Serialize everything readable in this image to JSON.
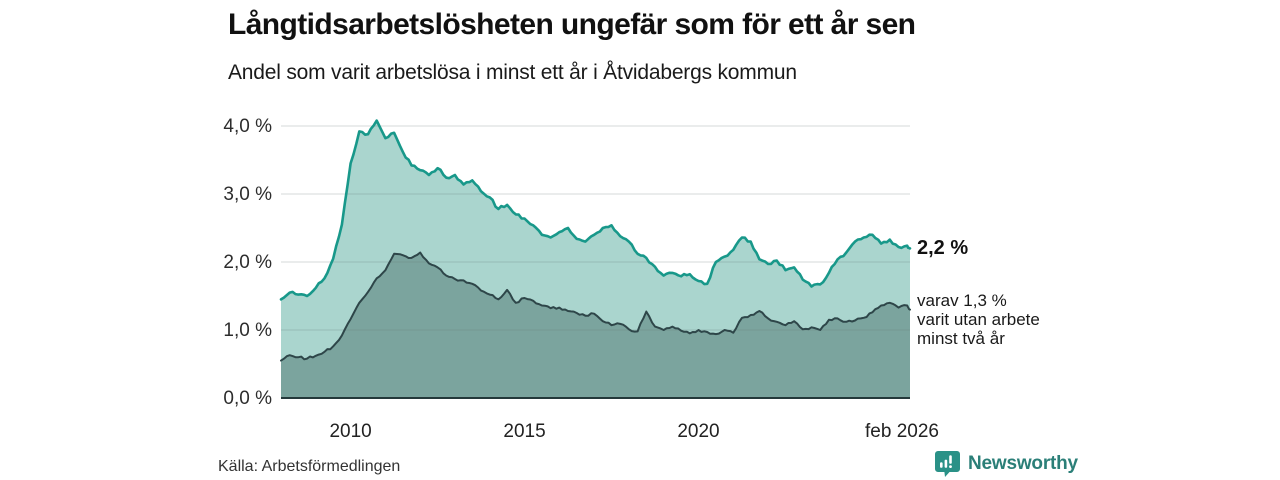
{
  "chart": {
    "title": "Långtidsarbetslösheten ungefär som för ett år sen",
    "subtitle": "Andel som varit arbetslösa i minst ett år i Åtvidabergs kommun",
    "source": "Källa: Arbetsförmedlingen",
    "end_label_total": "2,2 %",
    "annotation": {
      "line1": "varav 1,3 %",
      "line2": "varit utan arbete",
      "line3": "minst två år"
    }
  },
  "branding": {
    "logo_text": "Newsworthy",
    "logo_icon": "bar-chart-speech-bubble-icon"
  },
  "colors": {
    "long_term_line": "#18988a",
    "long_term_fill": "#aad5ce",
    "very_long_term_line": "#2e4649",
    "very_long_term_fill": "#7ba49e",
    "grid": "#dddddd",
    "axis": "#24393b",
    "logo_teal": "#2b7f78"
  },
  "chart_data": {
    "type": "area",
    "title": "Långtidsarbetslösheten ungefär som för ett år sen",
    "subtitle": "Andel som varit arbetslösa i minst ett år i Åtvidabergs kommun",
    "unit": "%",
    "grid": true,
    "legend_position": "end-of-line-labels",
    "ylim": [
      0,
      4.35
    ],
    "xlim": [
      2008.0,
      2026.08
    ],
    "y_ticks": [
      {
        "label": "0,0 %",
        "value": 0
      },
      {
        "label": "1,0 %",
        "value": 1
      },
      {
        "label": "2,0 %",
        "value": 2
      },
      {
        "label": "3,0 %",
        "value": 3
      },
      {
        "label": "4,0 %",
        "value": 4
      }
    ],
    "x_ticks": [
      {
        "label": "2010",
        "year": 2010
      },
      {
        "label": "2015",
        "year": 2015
      },
      {
        "label": "2020",
        "year": 2020
      },
      {
        "label": "feb 2026",
        "year": 2026.08
      }
    ],
    "x": [
      2008.0,
      2008.25,
      2008.5,
      2008.75,
      2009.0,
      2009.25,
      2009.5,
      2009.75,
      2010.0,
      2010.25,
      2010.5,
      2010.75,
      2011.0,
      2011.25,
      2011.5,
      2011.75,
      2012.0,
      2012.25,
      2012.5,
      2012.75,
      2013.0,
      2013.25,
      2013.5,
      2013.75,
      2014.0,
      2014.25,
      2014.5,
      2014.75,
      2015.0,
      2015.25,
      2015.5,
      2015.75,
      2016.0,
      2016.25,
      2016.5,
      2016.75,
      2017.0,
      2017.25,
      2017.5,
      2017.75,
      2018.0,
      2018.25,
      2018.5,
      2018.75,
      2019.0,
      2019.25,
      2019.5,
      2019.75,
      2020.0,
      2020.25,
      2020.5,
      2020.75,
      2021.0,
      2021.25,
      2021.5,
      2021.75,
      2022.0,
      2022.25,
      2022.5,
      2022.75,
      2023.0,
      2023.25,
      2023.5,
      2023.75,
      2024.0,
      2024.25,
      2024.5,
      2024.75,
      2025.0,
      2025.25,
      2025.5,
      2025.75,
      2026.0,
      2026.08
    ],
    "series": [
      {
        "name": "Andel arbetslösa minst ett år",
        "end_value": 2.2,
        "end_value_label": "2,2 %",
        "values": [
          1.45,
          1.55,
          1.52,
          1.5,
          1.62,
          1.76,
          2.05,
          2.55,
          3.45,
          3.92,
          3.88,
          4.08,
          3.82,
          3.9,
          3.62,
          3.42,
          3.35,
          3.28,
          3.38,
          3.24,
          3.28,
          3.14,
          3.2,
          3.04,
          2.95,
          2.78,
          2.84,
          2.7,
          2.64,
          2.54,
          2.4,
          2.36,
          2.44,
          2.5,
          2.34,
          2.3,
          2.4,
          2.5,
          2.54,
          2.38,
          2.3,
          2.12,
          2.06,
          1.93,
          1.8,
          1.84,
          1.79,
          1.82,
          1.72,
          1.68,
          2.0,
          2.08,
          2.18,
          2.36,
          2.3,
          2.04,
          1.97,
          2.02,
          1.88,
          1.92,
          1.74,
          1.64,
          1.67,
          1.84,
          2.04,
          2.14,
          2.3,
          2.36,
          2.4,
          2.27,
          2.33,
          2.22,
          2.24,
          2.2
        ]
      },
      {
        "name": "Andel utan arbete minst två år",
        "end_value": 1.3,
        "end_value_label": "varav 1,3 % varit utan arbete minst två år",
        "values": [
          0.55,
          0.63,
          0.6,
          0.58,
          0.62,
          0.68,
          0.76,
          0.92,
          1.16,
          1.4,
          1.56,
          1.76,
          1.88,
          2.12,
          2.1,
          2.06,
          2.14,
          1.98,
          1.92,
          1.8,
          1.75,
          1.73,
          1.68,
          1.58,
          1.52,
          1.45,
          1.59,
          1.4,
          1.47,
          1.43,
          1.36,
          1.32,
          1.33,
          1.28,
          1.25,
          1.21,
          1.24,
          1.13,
          1.07,
          1.09,
          1.01,
          0.98,
          1.27,
          1.05,
          1.0,
          1.05,
          0.99,
          0.95,
          1.0,
          0.97,
          0.94,
          1.0,
          0.96,
          1.18,
          1.22,
          1.28,
          1.17,
          1.12,
          1.07,
          1.13,
          1.01,
          1.04,
          1.0,
          1.15,
          1.17,
          1.12,
          1.14,
          1.18,
          1.26,
          1.36,
          1.4,
          1.33,
          1.36,
          1.3
        ]
      }
    ]
  }
}
